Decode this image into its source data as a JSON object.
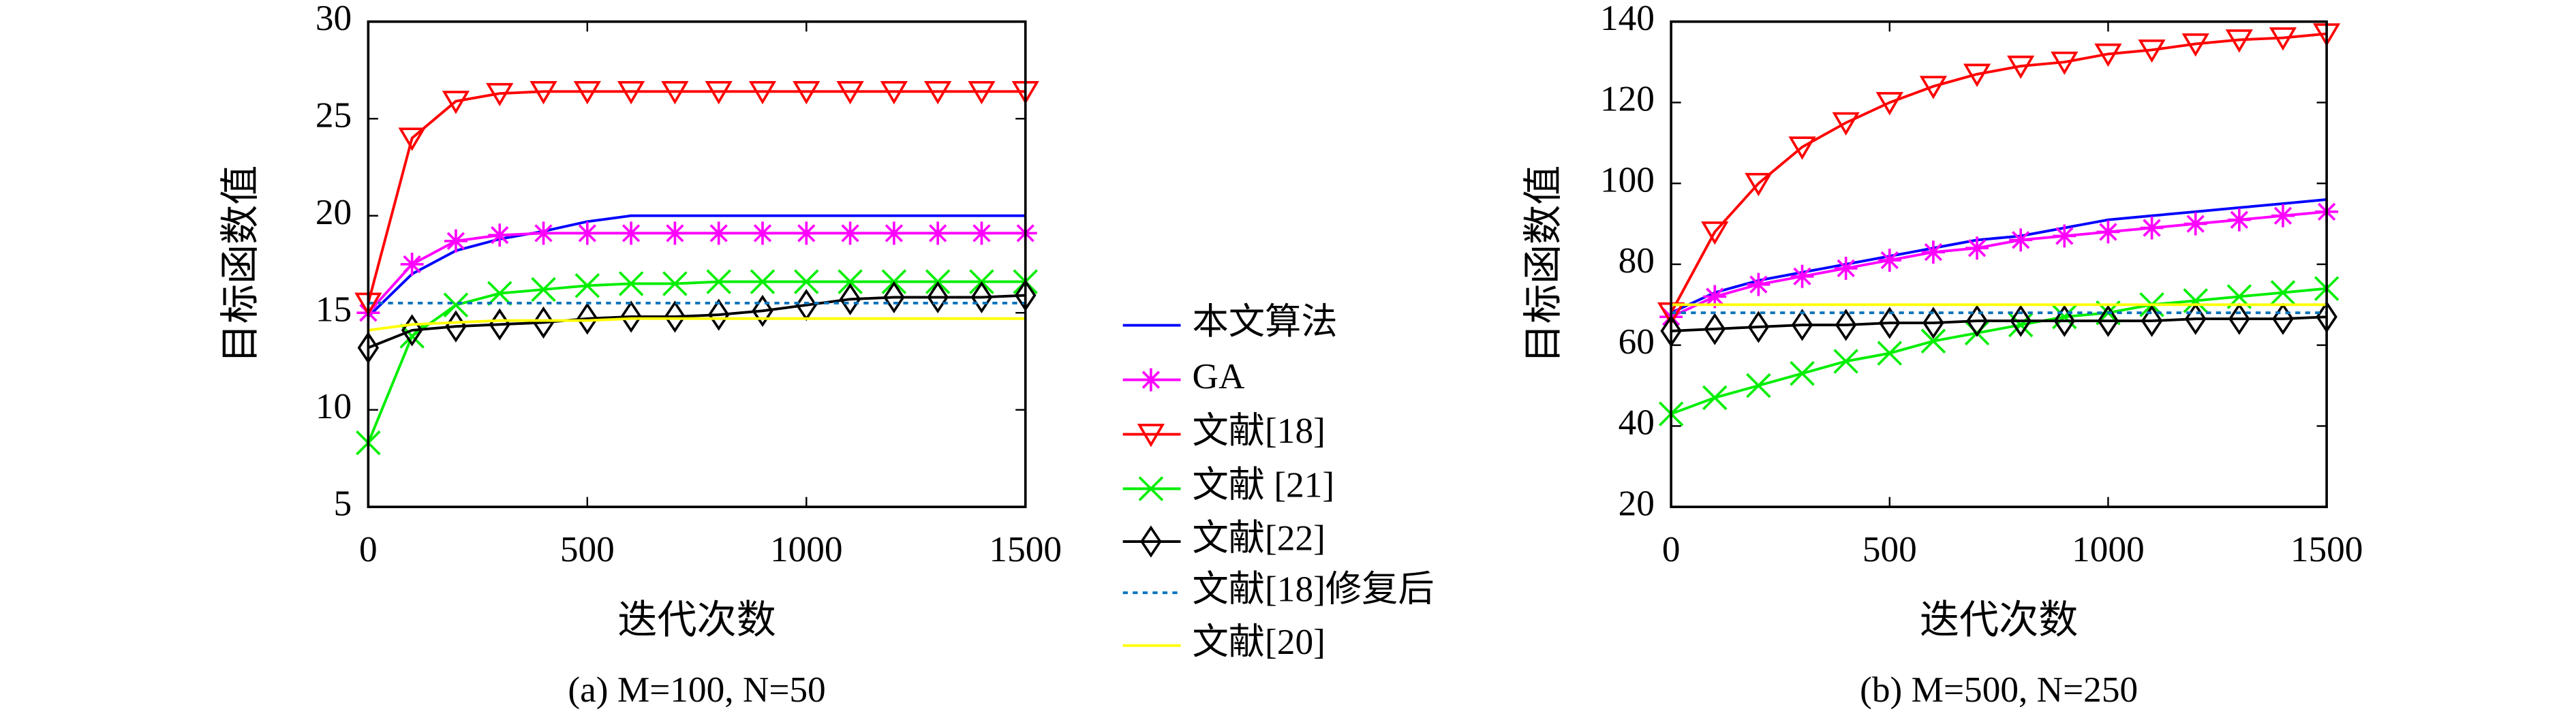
{
  "chart_data": [
    {
      "type": "line",
      "caption": "(a) M=100, N=50",
      "xlabel": "迭代次数",
      "ylabel": "目标函数值",
      "x": [
        0,
        100,
        200,
        300,
        400,
        500,
        600,
        700,
        800,
        900,
        1000,
        1100,
        1200,
        1300,
        1400,
        1500
      ],
      "xlim": [
        0,
        1500
      ],
      "xticks": [
        0,
        500,
        1000,
        1500
      ],
      "ylim": [
        5,
        30
      ],
      "yticks": [
        5,
        10,
        15,
        20,
        25,
        30
      ],
      "series": [
        {
          "name": "本文算法",
          "color": "#0000ff",
          "marker": "none",
          "values": [
            14.8,
            17.0,
            18.2,
            18.8,
            19.2,
            19.7,
            20,
            20,
            20,
            20,
            20,
            20,
            20,
            20,
            20,
            20
          ]
        },
        {
          "name": "GA",
          "color": "#ff00ff",
          "marker": "star",
          "values": [
            15,
            17.5,
            18.7,
            19.0,
            19.1,
            19.1,
            19.1,
            19.1,
            19.1,
            19.1,
            19.1,
            19.1,
            19.1,
            19.1,
            19.1,
            19.1
          ]
        },
        {
          "name": "文献[18]",
          "color": "#ff0000",
          "marker": "triangle",
          "values": [
            15.5,
            24,
            25.9,
            26.3,
            26.4,
            26.4,
            26.4,
            26.4,
            26.4,
            26.4,
            26.4,
            26.4,
            26.4,
            26.4,
            26.4,
            26.4
          ]
        },
        {
          "name": "文献 [21]",
          "color": "#00ee00",
          "marker": "x",
          "values": [
            8.3,
            13.8,
            15.4,
            16.0,
            16.2,
            16.4,
            16.5,
            16.5,
            16.6,
            16.6,
            16.6,
            16.6,
            16.6,
            16.6,
            16.6,
            16.6
          ]
        },
        {
          "name": "文献[22]",
          "color": "#000000",
          "marker": "diamond",
          "values": [
            13.2,
            14.1,
            14.3,
            14.4,
            14.5,
            14.7,
            14.8,
            14.8,
            14.9,
            15.1,
            15.4,
            15.7,
            15.8,
            15.8,
            15.8,
            15.9
          ]
        },
        {
          "name": "文献[18]修复后",
          "color": "#0072bd",
          "marker": "none",
          "dash": "dotted",
          "values": [
            15.5,
            15.5,
            15.5,
            15.5,
            15.5,
            15.5,
            15.5,
            15.5,
            15.5,
            15.5,
            15.5,
            15.5,
            15.5,
            15.5,
            15.5,
            15.5
          ]
        },
        {
          "name": "文献[20]",
          "color": "#ffff00",
          "marker": "none",
          "values": [
            14.1,
            14.4,
            14.5,
            14.6,
            14.6,
            14.6,
            14.7,
            14.7,
            14.7,
            14.7,
            14.7,
            14.7,
            14.7,
            14.7,
            14.7,
            14.7
          ]
        }
      ]
    },
    {
      "type": "line",
      "caption": "(b) M=500, N=250",
      "xlabel": "迭代次数",
      "ylabel": "目标函数值",
      "x": [
        0,
        100,
        200,
        300,
        400,
        500,
        600,
        700,
        800,
        900,
        1000,
        1100,
        1200,
        1300,
        1400,
        1500
      ],
      "xlim": [
        0,
        1500
      ],
      "xticks": [
        0,
        500,
        1000,
        1500
      ],
      "ylim": [
        20,
        140
      ],
      "yticks": [
        20,
        40,
        60,
        80,
        100,
        120,
        140
      ],
      "series": [
        {
          "color": "#0000ff",
          "marker": "none",
          "values": [
            68,
            73,
            76,
            78,
            80,
            82,
            84,
            86,
            87,
            89,
            91,
            92,
            93,
            94,
            95,
            96
          ]
        },
        {
          "color": "#ff00ff",
          "marker": "star",
          "values": [
            67,
            72,
            75,
            77,
            79,
            81,
            83,
            84,
            86,
            87,
            88,
            89,
            90,
            91,
            92,
            93
          ]
        },
        {
          "color": "#ff0000",
          "marker": "triangle",
          "values": [
            68,
            88,
            100,
            109,
            115,
            120,
            124,
            127,
            129,
            130,
            132,
            133,
            134.5,
            135.5,
            136,
            137
          ]
        },
        {
          "color": "#00ee00",
          "marker": "x",
          "values": [
            43,
            47,
            50,
            53,
            56,
            58,
            61,
            63,
            65,
            67,
            68,
            70,
            71,
            72,
            73,
            74
          ]
        },
        {
          "color": "#000000",
          "marker": "diamond",
          "values": [
            63.5,
            64,
            64.5,
            65,
            65,
            65.5,
            65.5,
            66,
            66,
            66,
            66,
            66,
            66.5,
            66.5,
            66.5,
            67
          ]
        },
        {
          "color": "#0072bd",
          "marker": "none",
          "dash": "dotted",
          "values": [
            68,
            68,
            68,
            68,
            68,
            68,
            68,
            68,
            68,
            68,
            68,
            68,
            68,
            68,
            68,
            68
          ]
        },
        {
          "color": "#ffff00",
          "marker": "none",
          "values": [
            70,
            70,
            70,
            70,
            70,
            70,
            70,
            70,
            70,
            70,
            70,
            70,
            70,
            70,
            70,
            70
          ]
        }
      ]
    }
  ]
}
